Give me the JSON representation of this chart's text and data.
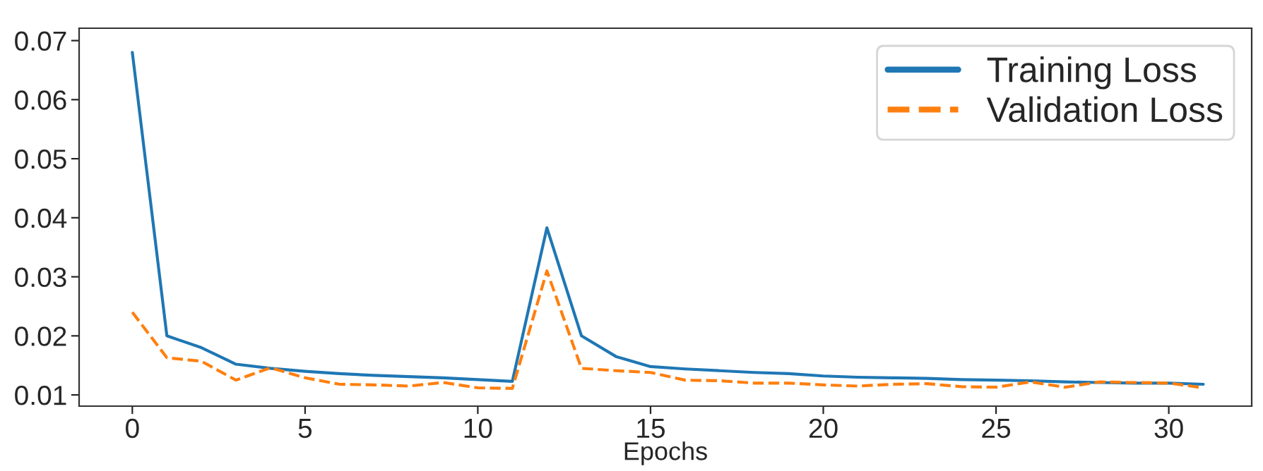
{
  "chart_data": {
    "type": "line",
    "xlabel": "Epochs",
    "x": [
      0,
      1,
      2,
      3,
      4,
      5,
      6,
      7,
      8,
      9,
      10,
      11,
      12,
      13,
      14,
      15,
      16,
      17,
      18,
      19,
      20,
      21,
      22,
      23,
      24,
      25,
      26,
      27,
      28,
      29,
      30,
      31
    ],
    "series": [
      {
        "name": "Training Loss",
        "color": "#1f77b4",
        "line_style": "solid",
        "values": [
          0.068,
          0.02,
          0.018,
          0.0152,
          0.0145,
          0.014,
          0.0136,
          0.0133,
          0.0131,
          0.0129,
          0.0126,
          0.0123,
          0.0383,
          0.02,
          0.0165,
          0.0148,
          0.0144,
          0.0141,
          0.0138,
          0.0136,
          0.0132,
          0.013,
          0.0129,
          0.0128,
          0.0126,
          0.0125,
          0.0124,
          0.0122,
          0.0121,
          0.012,
          0.012,
          0.0118
        ]
      },
      {
        "name": "Validation Loss",
        "color": "#ff7f0e",
        "line_style": "dashed",
        "values": [
          0.024,
          0.0163,
          0.0157,
          0.0125,
          0.0146,
          0.0129,
          0.0118,
          0.0117,
          0.0115,
          0.0121,
          0.0112,
          0.0111,
          0.031,
          0.0145,
          0.0141,
          0.0138,
          0.0125,
          0.0124,
          0.012,
          0.012,
          0.0117,
          0.0115,
          0.0118,
          0.0119,
          0.0114,
          0.0113,
          0.0122,
          0.0113,
          0.0122,
          0.0121,
          0.012,
          0.0112
        ]
      }
    ],
    "xlim": [
      -1.54,
      32.4
    ],
    "xticks": [
      0,
      5,
      10,
      15,
      20,
      25,
      30
    ],
    "ylim": [
      0.0081,
      0.0721
    ],
    "yticks": [
      0.01,
      0.02,
      0.03,
      0.04,
      0.05,
      0.06,
      0.07
    ],
    "grid": false,
    "legend": "top right",
    "marker": "none"
  }
}
